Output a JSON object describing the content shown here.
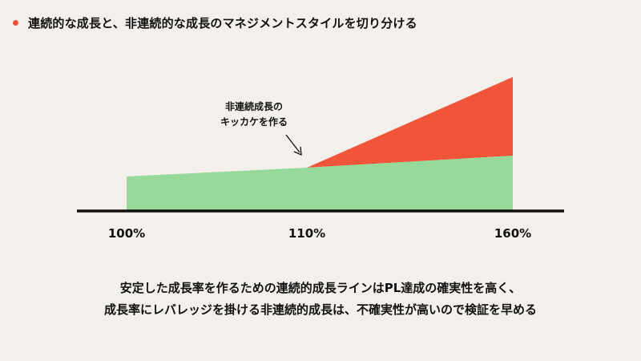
{
  "title": "連続的な成長と、非連続的な成長のマネジメントスタイルを切り分ける",
  "colors": {
    "background": "#f3f0eb",
    "continuous": "#96d99a",
    "discontinuous": "#f0553a",
    "axis": "#111111"
  },
  "annotation": {
    "line1": "非連続成長の",
    "line2": "キッカケを作る"
  },
  "axis": {
    "ticks": [
      "100%",
      "110%",
      "160%"
    ]
  },
  "caption": {
    "line1": "安定した成長率を作るための連続的成長ラインはPL達成の確実性を高く、",
    "line2": "成長率にレバレッジを掛ける非連続的成長は、不確実性が高いので検証を早める"
  }
}
